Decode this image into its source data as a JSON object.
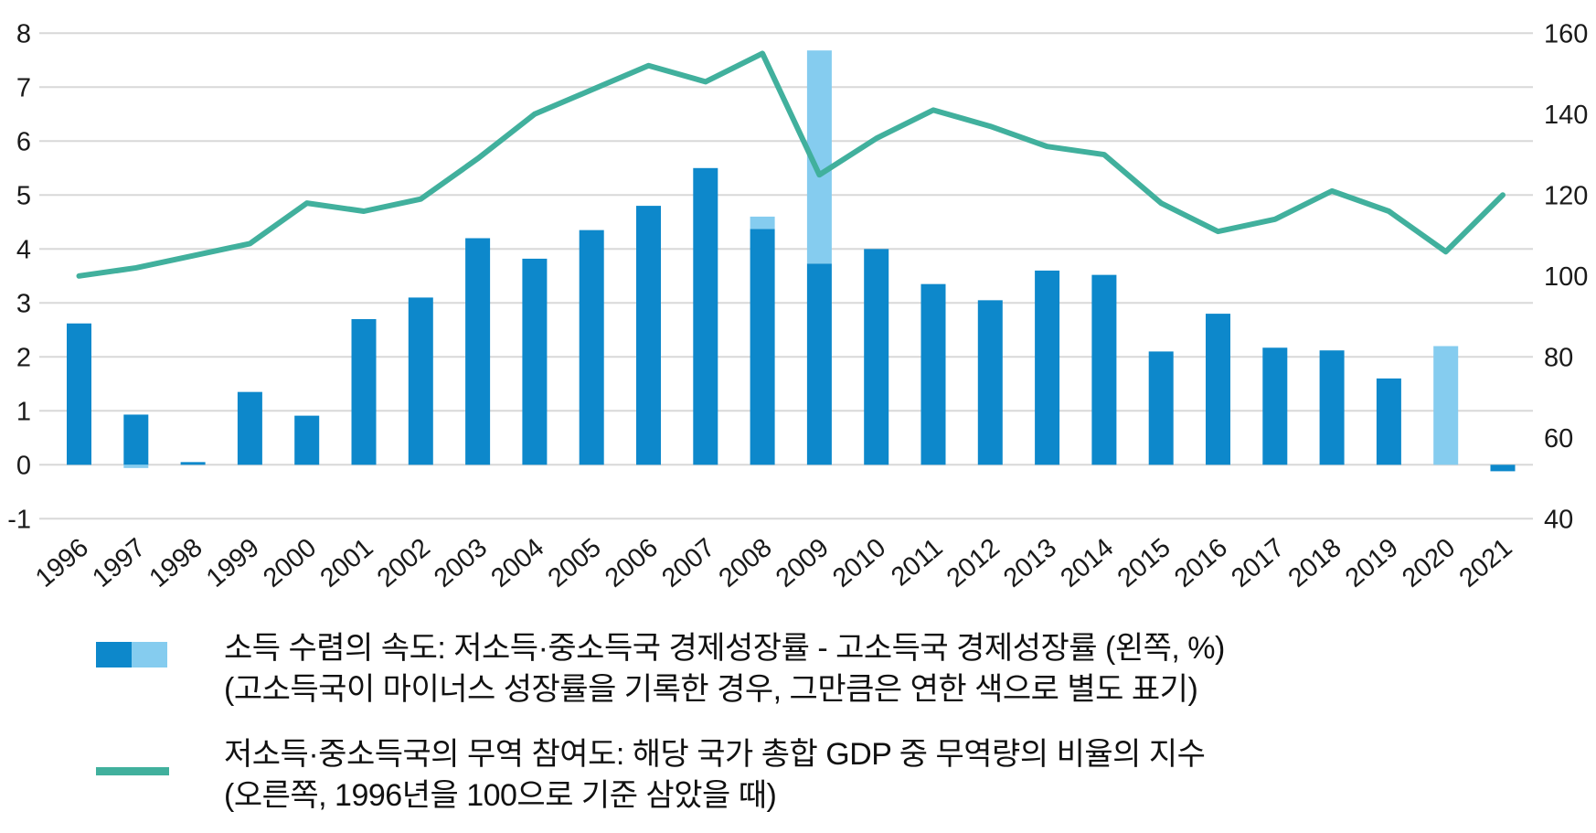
{
  "chart_data": {
    "type": "combo-bar-line",
    "categories": [
      "1996",
      "1997",
      "1998",
      "1999",
      "2000",
      "2001",
      "2002",
      "2003",
      "2004",
      "2005",
      "2006",
      "2007",
      "2008",
      "2009",
      "2010",
      "2011",
      "2012",
      "2013",
      "2014",
      "2015",
      "2016",
      "2017",
      "2018",
      "2019",
      "2020",
      "2021"
    ],
    "series": [
      {
        "name": "income-convergence-speed",
        "type": "bar",
        "axis": "left",
        "unit": "%",
        "dark_values": [
          2.62,
          0.93,
          0.05,
          1.35,
          0.91,
          2.7,
          3.1,
          4.2,
          3.82,
          4.35,
          4.8,
          5.5,
          4.37,
          3.73,
          4.0,
          3.35,
          3.05,
          3.6,
          3.52,
          2.1,
          2.8,
          2.17,
          2.12,
          1.6,
          0.0,
          -0.12
        ],
        "light_values": [
          0,
          -0.06,
          0,
          0,
          0,
          0,
          0,
          0,
          0,
          0,
          0,
          0,
          0.23,
          3.95,
          0,
          0,
          0,
          0,
          0,
          0,
          0,
          0,
          0,
          0,
          2.2,
          0
        ]
      },
      {
        "name": "trade-participation-index",
        "type": "line",
        "axis": "right",
        "base": "1996 = 100",
        "values": [
          100,
          102,
          105,
          108,
          118,
          116,
          119,
          129,
          140,
          146,
          152,
          148,
          155,
          125,
          134,
          141,
          137,
          132,
          130,
          118,
          111,
          114,
          121,
          116,
          106,
          120
        ]
      }
    ],
    "left_axis": {
      "min": -1,
      "max": 8,
      "tick_labels": [
        "8",
        "7",
        "6",
        "5",
        "4",
        "3",
        "2",
        "1",
        "0",
        "-1"
      ]
    },
    "right_axis": {
      "min": 40,
      "max": 160,
      "tick_labels": [
        "160",
        "140",
        "120",
        "100",
        "80",
        "60",
        "40"
      ]
    },
    "grid": true,
    "legend_position": "bottom"
  },
  "colors": {
    "bar_dark": "#0d88cb",
    "bar_light": "#85ccef",
    "line": "#41b09d",
    "gridline": "#d8d8d8",
    "tick_text": "#1a1a1a"
  },
  "legend": {
    "item1": {
      "label": "소득 수렴의 속도: 저소득·중소득국 경제성장률 - 고소득국 경제성장률 (왼쪽, %)",
      "note": "(고소득국이 마이너스 성장률을 기록한 경우, 그만큼은 연한 색으로 별도 표기)"
    },
    "item2": {
      "label": "저소득·중소득국의 무역 참여도: 해당 국가 총합 GDP 중 무역량의 비율의 지수",
      "note": "(오른쪽, 1996년을 100으로 기준 삼았을 때)"
    }
  }
}
